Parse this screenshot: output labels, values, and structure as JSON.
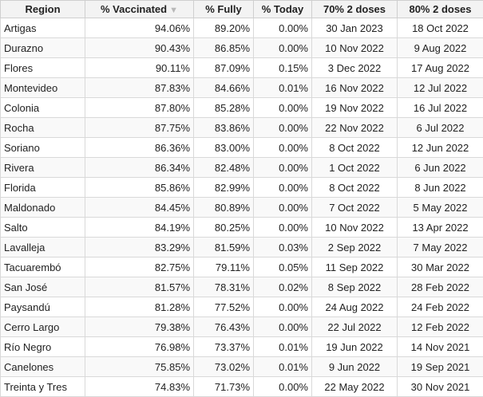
{
  "table": {
    "columns": [
      "Region",
      "% Vaccinated",
      "% Fully",
      "% Today",
      "70% 2 doses",
      "80% 2 doses"
    ],
    "sort_indicator": "▼",
    "rows": [
      [
        "Artigas",
        "94.06%",
        "89.20%",
        "0.00%",
        "30 Jan 2023",
        "18 Oct 2022"
      ],
      [
        "Durazno",
        "90.43%",
        "86.85%",
        "0.00%",
        "10 Nov 2022",
        "9 Aug 2022"
      ],
      [
        "Flores",
        "90.11%",
        "87.09%",
        "0.15%",
        "3 Dec 2022",
        "17 Aug 2022"
      ],
      [
        "Montevideo",
        "87.83%",
        "84.66%",
        "0.01%",
        "16 Nov 2022",
        "12 Jul 2022"
      ],
      [
        "Colonia",
        "87.80%",
        "85.28%",
        "0.00%",
        "19 Nov 2022",
        "16 Jul 2022"
      ],
      [
        "Rocha",
        "87.75%",
        "83.86%",
        "0.00%",
        "22 Nov 2022",
        "6 Jul 2022"
      ],
      [
        "Soriano",
        "86.36%",
        "83.00%",
        "0.00%",
        "8 Oct 2022",
        "12 Jun 2022"
      ],
      [
        "Rivera",
        "86.34%",
        "82.48%",
        "0.00%",
        "1 Oct 2022",
        "6 Jun 2022"
      ],
      [
        "Florida",
        "85.86%",
        "82.99%",
        "0.00%",
        "8 Oct 2022",
        "8 Jun 2022"
      ],
      [
        "Maldonado",
        "84.45%",
        "80.89%",
        "0.00%",
        "7 Oct 2022",
        "5 May 2022"
      ],
      [
        "Salto",
        "84.19%",
        "80.25%",
        "0.00%",
        "10 Nov 2022",
        "13 Apr 2022"
      ],
      [
        "Lavalleja",
        "83.29%",
        "81.59%",
        "0.03%",
        "2 Sep 2022",
        "7 May 2022"
      ],
      [
        "Tacuarembó",
        "82.75%",
        "79.11%",
        "0.05%",
        "11 Sep 2022",
        "30 Mar 2022"
      ],
      [
        "San José",
        "81.57%",
        "78.31%",
        "0.02%",
        "8 Sep 2022",
        "28 Feb 2022"
      ],
      [
        "Paysandú",
        "81.28%",
        "77.52%",
        "0.00%",
        "24 Aug 2022",
        "24 Feb 2022"
      ],
      [
        "Cerro Largo",
        "79.38%",
        "76.43%",
        "0.00%",
        "22 Jul 2022",
        "12 Feb 2022"
      ],
      [
        "Río Negro",
        "76.98%",
        "73.37%",
        "0.01%",
        "19 Jun 2022",
        "14 Nov 2021"
      ],
      [
        "Canelones",
        "75.85%",
        "73.02%",
        "0.01%",
        "9 Jun 2022",
        "19 Sep 2021"
      ],
      [
        "Treinta y Tres",
        "74.83%",
        "71.73%",
        "0.00%",
        "22 May 2022",
        "30 Nov 2021"
      ]
    ]
  }
}
